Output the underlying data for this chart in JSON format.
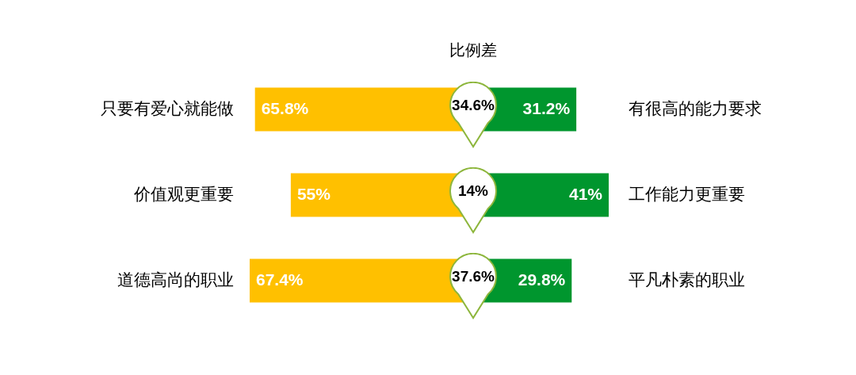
{
  "chart_data": [
    {
      "type": "bar",
      "orientation": "horizontal",
      "categories": [
        "只要有爱心就能做",
        "价值观更重要",
        "道德高尚的职业"
      ],
      "series": [
        {
          "color": "#ffc000",
          "values": [
            65.8,
            55,
            67.4
          ],
          "value_labels": [
            "65.8%",
            "55%",
            "67.4%"
          ]
        }
      ],
      "xlim": [
        67.4,
        0
      ],
      "tick_labels": "y",
      "grid": false,
      "legend": false
    },
    {
      "type": "other",
      "title": "比例差",
      "annotations": [
        "34.6%",
        "14%",
        "37.6%"
      ]
    },
    {
      "type": "bar",
      "orientation": "horizontal",
      "categories": [
        "有很高的能力要求",
        "工作能力更重要",
        "平凡朴素的职业"
      ],
      "series": [
        {
          "color": "#00962e",
          "values": [
            31.2,
            41,
            29.8
          ],
          "value_labels": [
            "31.2%",
            "41%",
            "29.8%"
          ]
        }
      ],
      "xlim": [
        0,
        41
      ],
      "tick_labels": "y",
      "grid": false,
      "legend": false
    }
  ]
}
